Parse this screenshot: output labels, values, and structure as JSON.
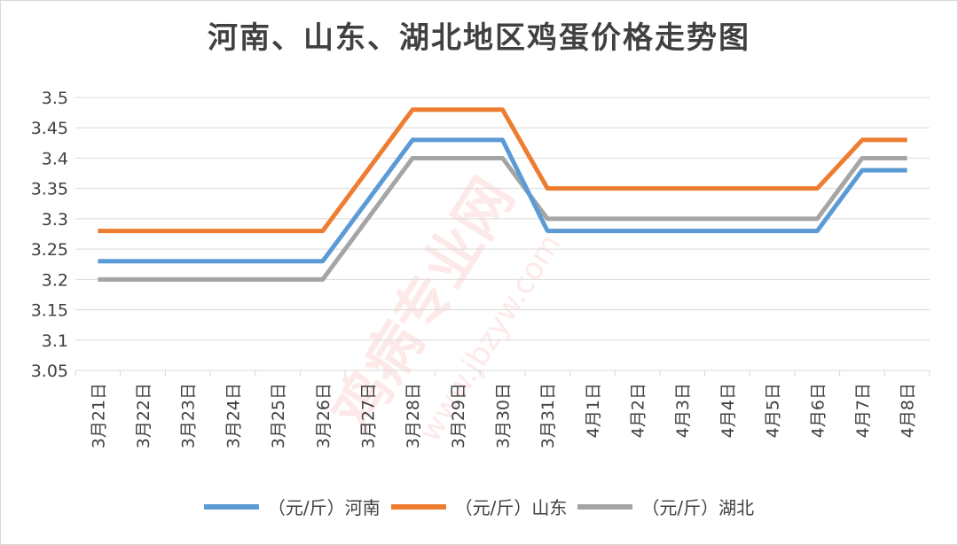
{
  "colors": {
    "henan": "#5B9BD5",
    "shandong": "#ED7D31",
    "hubei": "#A5A5A5",
    "grid": "#d9d9d9",
    "axis_text": "#404040"
  },
  "chart_data": {
    "type": "line",
    "title": "河南、山东、湖北地区鸡蛋价格走势图",
    "xlabel": "",
    "ylabel": "",
    "categories": [
      "3月21日",
      "3月22日",
      "3月23日",
      "3月24日",
      "3月25日",
      "3月26日",
      "3月27日",
      "3月28日",
      "3月29日",
      "3月30日",
      "3月31日",
      "4月1日",
      "4月2日",
      "4月3日",
      "4月4日",
      "4月5日",
      "4月6日",
      "4月7日",
      "4月8日"
    ],
    "ylim": [
      3.05,
      3.5
    ],
    "yticks": [
      "3.05",
      "3.1",
      "3.15",
      "3.2",
      "3.25",
      "3.3",
      "3.35",
      "3.4",
      "3.45",
      "3.5"
    ],
    "grid": true,
    "legend": "bottom",
    "series": [
      {
        "name": "（元/斤）河南",
        "color_key": "henan",
        "values": [
          3.23,
          3.23,
          3.23,
          3.23,
          3.23,
          3.23,
          3.33,
          3.43,
          3.43,
          3.43,
          3.28,
          3.28,
          3.28,
          3.28,
          3.28,
          3.28,
          3.28,
          3.38,
          3.38
        ]
      },
      {
        "name": "（元/斤）山东",
        "color_key": "shandong",
        "values": [
          3.28,
          3.28,
          3.28,
          3.28,
          3.28,
          3.28,
          3.38,
          3.48,
          3.48,
          3.48,
          3.35,
          3.35,
          3.35,
          3.35,
          3.35,
          3.35,
          3.35,
          3.43,
          3.43
        ]
      },
      {
        "name": "（元/斤）湖北",
        "color_key": "hubei",
        "values": [
          3.2,
          3.2,
          3.2,
          3.2,
          3.2,
          3.2,
          3.3,
          3.4,
          3.4,
          3.4,
          3.3,
          3.3,
          3.3,
          3.3,
          3.3,
          3.3,
          3.3,
          3.4,
          3.4
        ]
      }
    ]
  },
  "watermark": {
    "main_text": "鸡病专业网",
    "url_text": "www.jbzyw.com"
  }
}
